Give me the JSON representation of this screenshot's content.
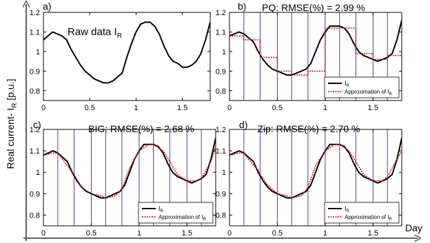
{
  "figure": {
    "ylabel_main": "Real current- I",
    "ylabel_sub": "R",
    "ylabel_unit": " [p.u.]",
    "xlabel_main": "Day"
  },
  "chart_data": [
    {
      "panel": "a)",
      "type": "line",
      "title": "Raw data I",
      "title_sub": "R",
      "xlim": [
        0,
        1.8
      ],
      "ylim": [
        0.75,
        1.2
      ],
      "xticks": [
        "0",
        "0.5",
        "1",
        "1.5"
      ],
      "yticks": [
        "0.8",
        "0.9",
        "1",
        "1.1",
        "1.2"
      ],
      "series": [
        {
          "kind": "raw",
          "x": [
            0,
            0.05,
            0.1,
            0.15,
            0.2,
            0.25,
            0.3,
            0.35,
            0.4,
            0.45,
            0.5,
            0.55,
            0.6,
            0.65,
            0.7,
            0.75,
            0.8,
            0.85,
            0.9,
            0.95,
            1.0,
            1.05,
            1.1,
            1.15,
            1.2,
            1.25,
            1.3,
            1.35,
            1.4,
            1.45,
            1.5,
            1.55,
            1.6,
            1.65,
            1.7,
            1.75,
            1.8
          ],
          "y": [
            1.06,
            1.08,
            1.1,
            1.09,
            1.08,
            1.06,
            1.01,
            0.97,
            0.93,
            0.9,
            0.88,
            0.86,
            0.85,
            0.84,
            0.84,
            0.85,
            0.87,
            0.89,
            0.97,
            1.04,
            1.1,
            1.14,
            1.15,
            1.15,
            1.13,
            1.09,
            1.03,
            0.98,
            0.95,
            0.94,
            0.92,
            0.92,
            0.93,
            0.95,
            0.99,
            1.06,
            1.15
          ]
        }
      ]
    },
    {
      "panel": "b)",
      "type": "line",
      "title": "PQ: RMSE(%) = 2.99 %",
      "xlim": [
        0,
        1.8
      ],
      "ylim": [
        0.75,
        1.2
      ],
      "xticks": [
        "0",
        "0.5",
        "1",
        "1.5"
      ],
      "yticks": [
        "0.8",
        "0.9",
        "1",
        "1.1",
        "1.2"
      ],
      "vlines": [
        0.15,
        0.32,
        0.5,
        0.65,
        0.82,
        1.0,
        1.15,
        1.32,
        1.5,
        1.65,
        1.82
      ],
      "legend": [
        "I",
        "Approximation of I"
      ],
      "legend_sub": "R",
      "series": [
        {
          "name": "I",
          "x": [
            0,
            0.05,
            0.1,
            0.15,
            0.2,
            0.25,
            0.3,
            0.35,
            0.4,
            0.45,
            0.5,
            0.55,
            0.6,
            0.65,
            0.7,
            0.75,
            0.8,
            0.85,
            0.9,
            0.95,
            1.0,
            1.05,
            1.1,
            1.15,
            1.2,
            1.25,
            1.3,
            1.35,
            1.4,
            1.45,
            1.5,
            1.55,
            1.6,
            1.65,
            1.7,
            1.75,
            1.8
          ],
          "y": [
            1.08,
            1.09,
            1.1,
            1.09,
            1.07,
            1.05,
            1.0,
            0.96,
            0.93,
            0.91,
            0.9,
            0.89,
            0.88,
            0.88,
            0.89,
            0.9,
            0.91,
            0.94,
            1.0,
            1.06,
            1.1,
            1.13,
            1.13,
            1.13,
            1.12,
            1.09,
            1.04,
            1.0,
            0.98,
            0.97,
            0.96,
            0.95,
            0.96,
            0.97,
            0.99,
            1.06,
            1.16
          ]
        },
        {
          "name": "Approximation of I",
          "step_x": [
            0,
            0.15,
            0.32,
            0.5,
            0.65,
            0.82,
            1.0,
            1.15,
            1.32,
            1.5,
            1.65,
            1.82
          ],
          "step_y": [
            1.08,
            1.06,
            0.97,
            0.9,
            0.88,
            0.9,
            1.12,
            1.12,
            0.99,
            0.96,
            0.98,
            1.1
          ]
        }
      ]
    },
    {
      "panel": "c)",
      "type": "line",
      "title": "BIG: RMSE(%) = 2.68 %",
      "xlim": [
        0,
        1.8
      ],
      "ylim": [
        0.75,
        1.2
      ],
      "xticks": [
        "0",
        "0.5",
        "1",
        "1.5"
      ],
      "yticks": [
        "0.8",
        "0.9",
        "1",
        "1.1",
        "1.2"
      ],
      "vlines": [
        0.15,
        0.32,
        0.5,
        0.65,
        0.82,
        1.0,
        1.15,
        1.32,
        1.5,
        1.65,
        1.82
      ],
      "legend": [
        "I",
        "Approximation of I"
      ],
      "legend_sub": "R",
      "series": [
        {
          "name": "I",
          "x": [
            0,
            0.05,
            0.1,
            0.15,
            0.2,
            0.25,
            0.3,
            0.35,
            0.4,
            0.45,
            0.5,
            0.55,
            0.6,
            0.65,
            0.7,
            0.75,
            0.8,
            0.85,
            0.9,
            0.95,
            1.0,
            1.05,
            1.1,
            1.15,
            1.2,
            1.25,
            1.3,
            1.35,
            1.4,
            1.45,
            1.5,
            1.55,
            1.6,
            1.65,
            1.7,
            1.75,
            1.8
          ],
          "y": [
            1.08,
            1.09,
            1.1,
            1.09,
            1.07,
            1.05,
            1.0,
            0.96,
            0.93,
            0.91,
            0.9,
            0.89,
            0.88,
            0.88,
            0.89,
            0.9,
            0.91,
            0.94,
            1.0,
            1.06,
            1.1,
            1.13,
            1.13,
            1.13,
            1.12,
            1.09,
            1.04,
            1.0,
            0.98,
            0.97,
            0.96,
            0.95,
            0.96,
            0.97,
            0.99,
            1.06,
            1.16
          ]
        },
        {
          "name": "Approximation of I",
          "x": [
            0,
            0.1,
            0.15,
            0.2,
            0.3,
            0.32,
            0.4,
            0.5,
            0.6,
            0.65,
            0.75,
            0.82,
            0.9,
            1.0,
            1.1,
            1.15,
            1.25,
            1.32,
            1.4,
            1.5,
            1.6,
            1.65,
            1.75,
            1.8
          ],
          "y": [
            1.08,
            1.09,
            1.09,
            1.06,
            1.0,
            0.99,
            0.93,
            0.9,
            0.89,
            0.88,
            0.89,
            0.92,
            1.02,
            1.1,
            1.13,
            1.13,
            1.1,
            1.05,
            0.99,
            0.96,
            0.96,
            0.97,
            1.05,
            1.12
          ]
        }
      ]
    },
    {
      "panel": "d)",
      "type": "line",
      "title": "Zip: RMSE(%) = 2.70 %",
      "xlim": [
        0,
        1.8
      ],
      "ylim": [
        0.75,
        1.2
      ],
      "xticks": [
        "0",
        "0.5",
        "1",
        "1.5"
      ],
      "yticks": [
        "0.8",
        "0.9",
        "1",
        "1.1",
        "1.2"
      ],
      "vlines": [
        0.15,
        0.32,
        0.5,
        0.65,
        0.82,
        1.0,
        1.15,
        1.32,
        1.5,
        1.65,
        1.82
      ],
      "legend": [
        "I",
        "Approximation of I"
      ],
      "legend_sub": "R",
      "series": [
        {
          "name": "I",
          "x": [
            0,
            0.05,
            0.1,
            0.15,
            0.2,
            0.25,
            0.3,
            0.35,
            0.4,
            0.45,
            0.5,
            0.55,
            0.6,
            0.65,
            0.7,
            0.75,
            0.8,
            0.85,
            0.9,
            0.95,
            1.0,
            1.05,
            1.1,
            1.15,
            1.2,
            1.25,
            1.3,
            1.35,
            1.4,
            1.45,
            1.5,
            1.55,
            1.6,
            1.65,
            1.7,
            1.75,
            1.8
          ],
          "y": [
            1.08,
            1.09,
            1.1,
            1.09,
            1.07,
            1.05,
            1.0,
            0.96,
            0.93,
            0.91,
            0.9,
            0.89,
            0.88,
            0.88,
            0.89,
            0.9,
            0.91,
            0.94,
            1.0,
            1.06,
            1.1,
            1.13,
            1.13,
            1.13,
            1.12,
            1.09,
            1.04,
            1.0,
            0.98,
            0.97,
            0.96,
            0.95,
            0.96,
            0.97,
            0.99,
            1.06,
            1.16
          ]
        },
        {
          "name": "Approximation of I",
          "x": [
            0,
            0.1,
            0.15,
            0.2,
            0.3,
            0.32,
            0.4,
            0.5,
            0.6,
            0.65,
            0.75,
            0.82,
            0.9,
            1.0,
            1.1,
            1.15,
            1.25,
            1.32,
            1.4,
            1.5,
            1.6,
            1.65,
            1.75,
            1.8
          ],
          "y": [
            1.08,
            1.09,
            1.09,
            1.06,
            1.01,
            0.99,
            0.94,
            0.9,
            0.89,
            0.88,
            0.89,
            0.93,
            1.03,
            1.1,
            1.13,
            1.13,
            1.1,
            1.05,
            0.99,
            0.96,
            0.96,
            0.98,
            1.06,
            1.1
          ]
        }
      ]
    }
  ],
  "colors": {
    "line": "#000000",
    "approx": "#e00000",
    "segment": "#3b3bd6",
    "axis_arrow": "#606060"
  }
}
